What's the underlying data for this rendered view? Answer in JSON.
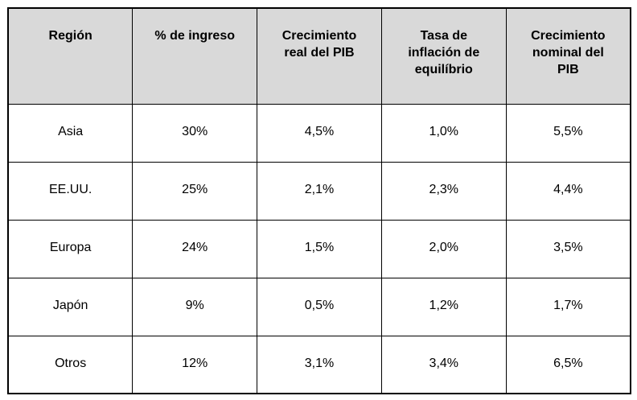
{
  "colors": {
    "header_bg": "#d9d9d9",
    "border": "#000000",
    "page_bg": "#ffffff",
    "text": "#000000"
  },
  "table": {
    "columns": [
      "Región",
      "% de ingreso",
      "Crecimiento\nreal del PIB",
      "Tasa de\ninflación de\nequilíbrio",
      "Crecimiento\nnominal del\nPIB"
    ],
    "rows": [
      [
        "Asia",
        "30%",
        "4,5%",
        "1,0%",
        "5,5%"
      ],
      [
        "EE.UU.",
        "25%",
        "2,1%",
        "2,3%",
        "4,4%"
      ],
      [
        "Europa",
        "24%",
        "1,5%",
        "2,0%",
        "3,5%"
      ],
      [
        "Japón",
        "9%",
        "0,5%",
        "1,2%",
        "1,7%"
      ],
      [
        "Otros",
        "12%",
        "3,1%",
        "3,4%",
        "6,5%"
      ]
    ]
  }
}
